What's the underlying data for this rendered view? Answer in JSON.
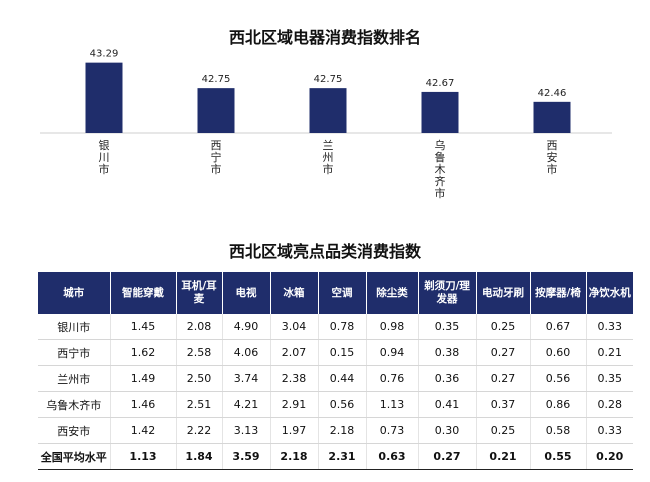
{
  "chart_title": "西北区域电器消费指数排名",
  "table_title": "西北区域亮点品类消费指数",
  "chart_data": {
    "type": "bar",
    "title": "西北区域电器消费指数排名",
    "categories": [
      "银川市",
      "西宁市",
      "兰州市",
      "乌鲁木齐市",
      "西安市"
    ],
    "values": [
      43.29,
      42.75,
      42.75,
      42.67,
      42.46
    ],
    "ylim": [
      41.8,
      43.6
    ],
    "bar_color": "#1f2d6b",
    "grid": false,
    "legend": "none"
  },
  "table": {
    "headers": [
      "城市",
      "智能穿戴",
      "耳机/耳麦",
      "电视",
      "冰箱",
      "空调",
      "除尘类",
      "剃须刀/理发器",
      "电动牙刷",
      "按摩器/椅",
      "净饮水机"
    ],
    "rows": [
      [
        "银川市",
        "1.45",
        "2.08",
        "4.90",
        "3.04",
        "0.78",
        "0.98",
        "0.35",
        "0.25",
        "0.67",
        "0.33"
      ],
      [
        "西宁市",
        "1.62",
        "2.58",
        "4.06",
        "2.07",
        "0.15",
        "0.94",
        "0.38",
        "0.27",
        "0.60",
        "0.21"
      ],
      [
        "兰州市",
        "1.49",
        "2.50",
        "3.74",
        "2.38",
        "0.44",
        "0.76",
        "0.36",
        "0.27",
        "0.56",
        "0.35"
      ],
      [
        "乌鲁木齐市",
        "1.46",
        "2.51",
        "4.21",
        "2.91",
        "0.56",
        "1.13",
        "0.41",
        "0.37",
        "0.86",
        "0.28"
      ],
      [
        "西安市",
        "1.42",
        "2.22",
        "3.13",
        "1.97",
        "2.18",
        "0.73",
        "0.30",
        "0.25",
        "0.58",
        "0.33"
      ],
      [
        "全国平均水平",
        "1.13",
        "1.84",
        "3.59",
        "2.18",
        "2.31",
        "0.63",
        "0.27",
        "0.21",
        "0.55",
        "0.20"
      ]
    ]
  },
  "colors": {
    "accent": "#1f2d6b",
    "header_text": "#ffffff"
  }
}
